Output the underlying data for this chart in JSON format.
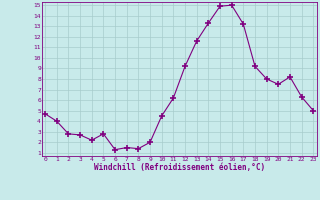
{
  "x": [
    0,
    1,
    2,
    3,
    4,
    5,
    6,
    7,
    8,
    9,
    10,
    11,
    12,
    13,
    14,
    15,
    16,
    17,
    18,
    19,
    20,
    21,
    22,
    23
  ],
  "y": [
    4.7,
    4.0,
    2.8,
    2.7,
    2.2,
    2.8,
    1.3,
    1.5,
    1.4,
    2.0,
    4.5,
    6.2,
    9.2,
    11.6,
    13.3,
    14.9,
    15.0,
    13.2,
    9.2,
    8.0,
    7.5,
    8.2,
    6.3,
    5.0
  ],
  "line_color": "#800080",
  "marker": "+",
  "marker_size": 4,
  "bg_color": "#c8eaea",
  "grid_color": "#a8cccc",
  "xlabel": "Windchill (Refroidissement éolien,°C)",
  "xlabel_color": "#800080",
  "tick_color": "#800080",
  "ylim": [
    1,
    15
  ],
  "xlim": [
    0,
    23
  ],
  "yticks": [
    1,
    2,
    3,
    4,
    5,
    6,
    7,
    8,
    9,
    10,
    11,
    12,
    13,
    14,
    15
  ],
  "xticks": [
    0,
    1,
    2,
    3,
    4,
    5,
    6,
    7,
    8,
    9,
    10,
    11,
    12,
    13,
    14,
    15,
    16,
    17,
    18,
    19,
    20,
    21,
    22,
    23
  ]
}
